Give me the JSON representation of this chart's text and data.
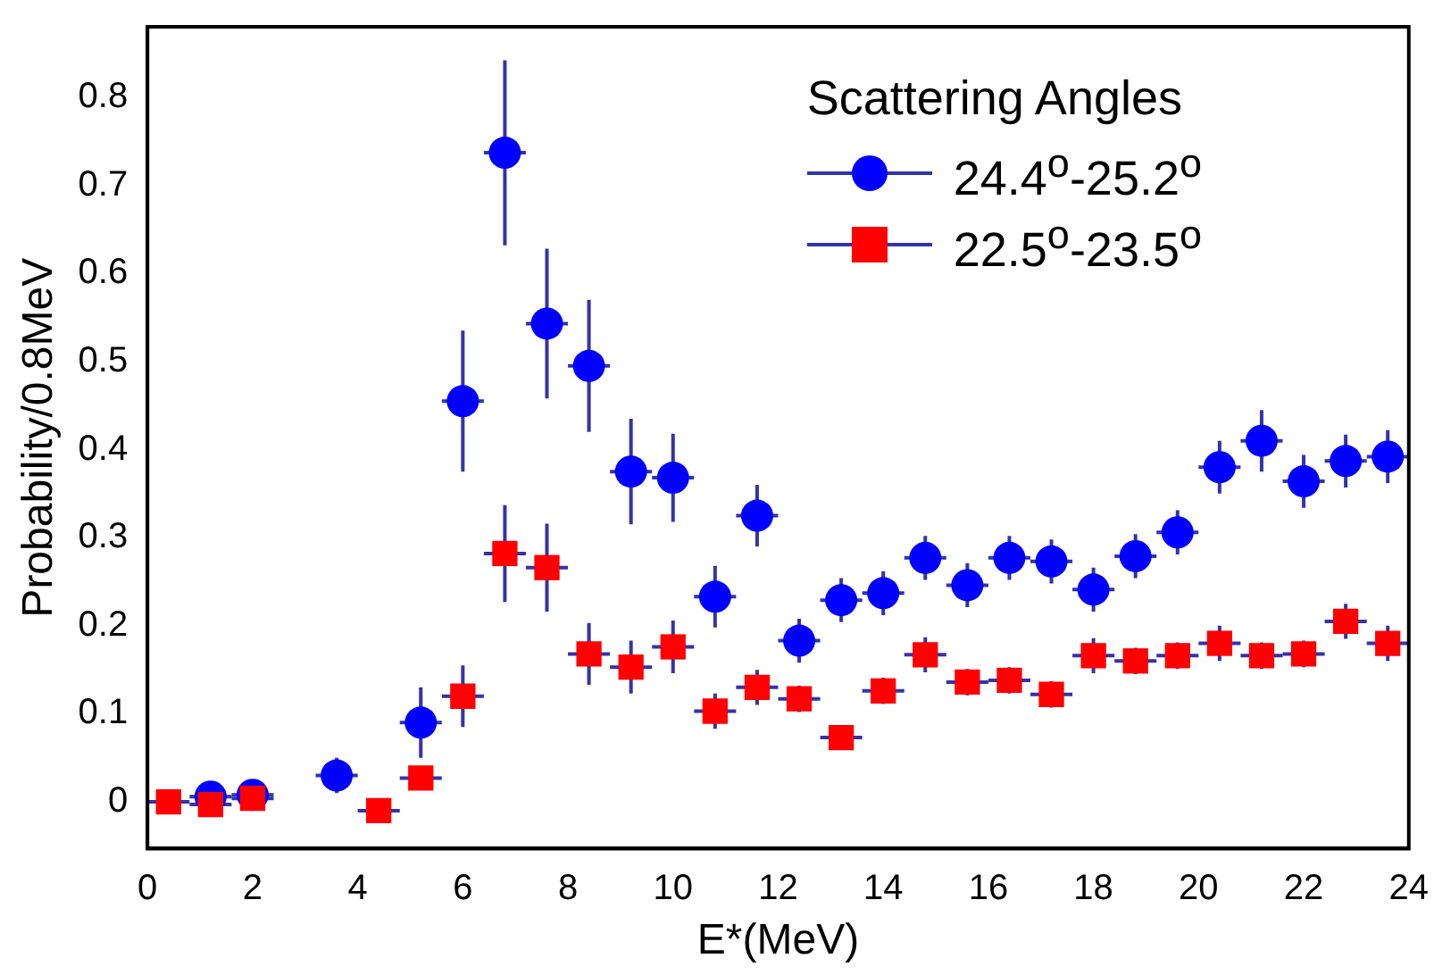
{
  "chart_data": {
    "type": "scatter",
    "xlabel": "E*(MeV)",
    "ylabel": "Probability/0.8MeV",
    "legend_title": "Scattering Angles",
    "legend": "top right",
    "grid": false,
    "xlim": [
      0,
      24
    ],
    "xticks": [
      0,
      2,
      4,
      6,
      8,
      10,
      12,
      14,
      16,
      18,
      20,
      22,
      24
    ],
    "ylim": [
      -0.053,
      0.88
    ],
    "yticks": [
      0,
      0.1,
      0.2,
      0.3,
      0.4,
      0.5,
      0.6,
      0.7,
      0.8
    ],
    "series": [
      {
        "name": "24.4$^{o}$-25.2$^{o}$",
        "color": "#0000ff",
        "marker": "circle",
        "x": [
          1.2,
          2.0,
          3.6,
          5.2,
          6.0,
          6.8,
          7.6,
          8.4,
          9.2,
          10.0,
          10.8,
          11.6,
          12.4,
          13.2,
          14.0,
          14.8,
          15.6,
          16.4,
          17.2,
          18.0,
          18.8,
          19.6,
          20.4,
          21.2,
          22.0,
          22.8,
          23.6
        ],
        "values": [
          0.006,
          0.008,
          0.03,
          0.09,
          0.455,
          0.737,
          0.543,
          0.495,
          0.375,
          0.368,
          0.233,
          0.325,
          0.183,
          0.229,
          0.237,
          0.277,
          0.246,
          0.277,
          0.273,
          0.241,
          0.279,
          0.306,
          0.38,
          0.41,
          0.364,
          0.387,
          0.392
        ],
        "errors": [
          null,
          null,
          0.02,
          0.04,
          0.08,
          0.105,
          0.085,
          0.075,
          0.06,
          0.05,
          0.035,
          0.035,
          0.025,
          0.025,
          0.025,
          0.025,
          0.025,
          0.025,
          0.025,
          0.025,
          0.025,
          0.025,
          0.03,
          0.035,
          0.03,
          0.03,
          0.03
        ],
        "xerrors": [
          0.4,
          0.4,
          0.4,
          0.4,
          0.4,
          0.4,
          0.4,
          0.4,
          0.4,
          0.4,
          0.4,
          0.4,
          0.4,
          0.4,
          0.4,
          0.4,
          0.4,
          0.4,
          0.4,
          0.4,
          0.4,
          0.4,
          0.4,
          0.4,
          0.4,
          0.4,
          0.4
        ]
      },
      {
        "name": "22.5$^{o}$-23.5$^{o}$",
        "color": "#ff0000",
        "marker": "square",
        "x": [
          0.4,
          1.2,
          2.0,
          4.4,
          5.2,
          6.0,
          6.8,
          7.6,
          8.4,
          9.2,
          10.0,
          10.8,
          11.6,
          12.4,
          13.2,
          14.0,
          14.8,
          15.6,
          16.4,
          17.2,
          18.0,
          18.8,
          19.6,
          20.4,
          21.2,
          22.0,
          22.8,
          23.6
        ],
        "values": [
          0.0,
          -0.003,
          0.004,
          -0.01,
          0.027,
          0.12,
          0.282,
          0.266,
          0.168,
          0.153,
          0.176,
          0.103,
          0.13,
          0.117,
          0.073,
          0.126,
          0.167,
          0.136,
          0.138,
          0.122,
          0.166,
          0.16,
          0.166,
          0.18,
          0.166,
          0.168,
          0.205,
          0.18
        ],
        "errors": [
          null,
          null,
          null,
          null,
          null,
          0.035,
          0.055,
          0.05,
          0.035,
          0.03,
          0.03,
          0.02,
          0.02,
          0.015,
          null,
          0.015,
          0.02,
          0.015,
          0.015,
          0.015,
          0.02,
          0.015,
          0.015,
          0.02,
          0.015,
          0.015,
          0.02,
          0.02
        ],
        "xerrors": [
          0.4,
          0.4,
          0.4,
          0.4,
          0.4,
          0.4,
          0.4,
          0.4,
          0.4,
          0.4,
          0.4,
          0.4,
          0.4,
          0.4,
          0.4,
          0.4,
          0.4,
          0.4,
          0.4,
          0.4,
          0.4,
          0.4,
          0.4,
          0.4,
          0.4,
          0.4,
          0.4,
          0.4
        ]
      }
    ]
  }
}
